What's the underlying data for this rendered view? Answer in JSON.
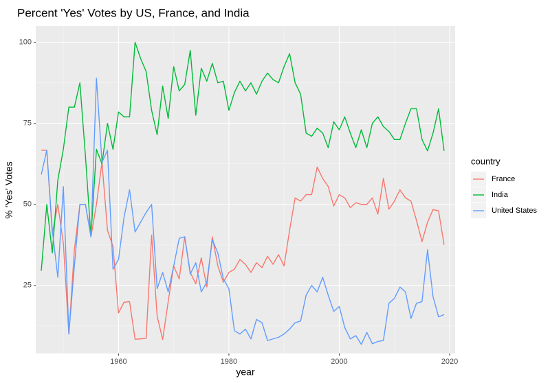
{
  "chart_data": {
    "type": "line",
    "title": "Percent 'Yes' Votes by US, France, and India",
    "xlabel": "year",
    "ylabel": "% 'Yes' Votes",
    "xlim": [
      1945,
      2021
    ],
    "ylim": [
      4,
      105
    ],
    "xticks": [
      1960,
      1980,
      2000,
      2020
    ],
    "yticks": [
      25,
      50,
      75,
      100
    ],
    "grid": true,
    "legend": {
      "title": "country",
      "position": "right"
    },
    "x": [
      1946,
      1947,
      1948,
      1949,
      1950,
      1951,
      1952,
      1953,
      1954,
      1955,
      1956,
      1957,
      1958,
      1959,
      1960,
      1961,
      1962,
      1963,
      1964,
      1965,
      1966,
      1967,
      1968,
      1969,
      1970,
      1971,
      1972,
      1973,
      1974,
      1975,
      1976,
      1977,
      1978,
      1979,
      1980,
      1981,
      1982,
      1983,
      1984,
      1985,
      1986,
      1987,
      1988,
      1989,
      1990,
      1991,
      1992,
      1993,
      1994,
      1995,
      1996,
      1997,
      1998,
      1999,
      2000,
      2001,
      2002,
      2003,
      2004,
      2005,
      2006,
      2007,
      2008,
      2009,
      2010,
      2011,
      2012,
      2013,
      2014,
      2015,
      2016,
      2017,
      2018,
      2019
    ],
    "series": [
      {
        "name": "France",
        "color": "#F8766D",
        "values": [
          66.7,
          66.7,
          41,
          50,
          38,
          10,
          36,
          50,
          50,
          40,
          50,
          63,
          42,
          37,
          16.5,
          19.8,
          20,
          8.4,
          8.5,
          8.7,
          40.5,
          15.5,
          8.3,
          20,
          31,
          27,
          40,
          29,
          25.5,
          33.5,
          24.5,
          40,
          31,
          26,
          29,
          30,
          33,
          31.5,
          29,
          32,
          30.5,
          34,
          31.5,
          34.5,
          31,
          42,
          52,
          51,
          53,
          53,
          61.5,
          58,
          55.5,
          49.5,
          53,
          52,
          49,
          50.5,
          50,
          50,
          52,
          47,
          58,
          48.5,
          51,
          54.5,
          52,
          51,
          45,
          38.5,
          44.5,
          48.4,
          48,
          37.5
        ]
      },
      {
        "name": "India",
        "color": "#00BA38",
        "values": [
          29.5,
          50,
          35,
          57.5,
          67,
          80,
          80,
          87.5,
          65,
          40,
          67,
          62.5,
          75,
          67,
          78.5,
          77,
          77,
          100,
          95,
          91,
          79,
          71.5,
          86.5,
          76.5,
          92.5,
          85,
          87,
          97.5,
          77.5,
          92,
          88,
          93.5,
          87.5,
          88,
          79,
          84.5,
          88,
          85,
          87.5,
          84,
          88,
          90.5,
          88.5,
          87.5,
          92.5,
          96.5,
          87.5,
          84,
          72,
          71,
          73.5,
          72,
          67.5,
          75.5,
          73,
          77,
          72,
          67.5,
          73,
          67.5,
          75,
          77,
          74,
          72.5,
          70,
          70,
          75,
          79.5,
          79.5,
          70,
          66.5,
          72,
          79.5,
          66.5
        ]
      },
      {
        "name": "United States",
        "color": "#619CFF",
        "values": [
          59.2,
          66.7,
          42,
          27.5,
          55.5,
          10,
          31,
          50,
          50,
          40,
          88.9,
          63,
          66.7,
          30,
          33,
          46,
          54.5,
          41.5,
          44.5,
          47.5,
          50,
          24,
          29,
          23,
          31,
          39.5,
          40,
          28.5,
          32,
          23,
          26,
          39,
          35,
          27,
          24,
          11,
          10,
          11.5,
          8.5,
          14.5,
          13.5,
          8,
          8.5,
          9,
          10,
          11.5,
          13.5,
          14,
          22,
          25,
          23,
          27.5,
          22,
          17,
          18.5,
          12,
          8.5,
          9.5,
          6.8,
          10.5,
          7,
          7.7,
          8,
          19.5,
          21,
          24.5,
          23,
          14.8,
          19.5,
          20,
          36,
          21.5,
          15.3,
          16
        ]
      }
    ]
  }
}
